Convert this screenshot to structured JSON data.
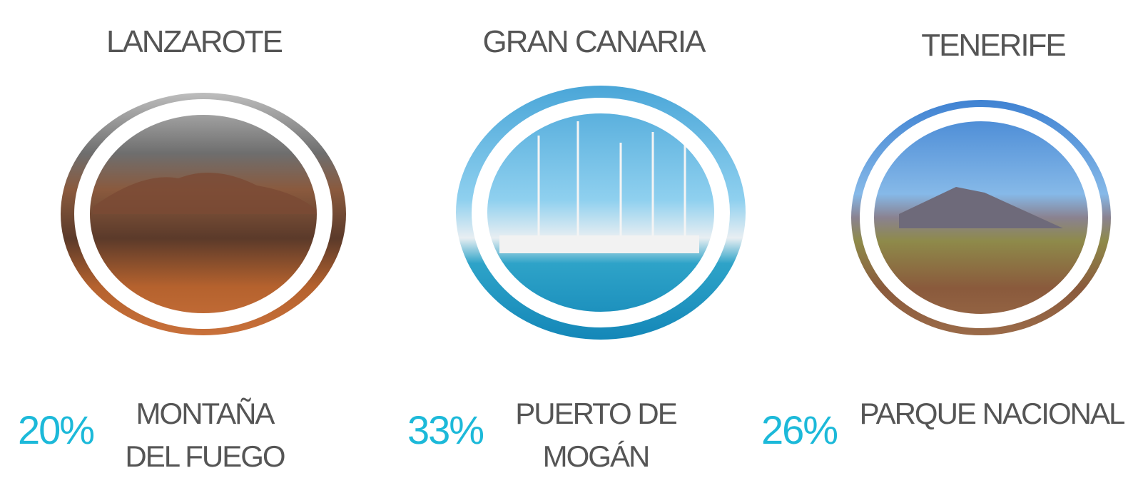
{
  "islands": [
    {
      "title": "LANZAROTE",
      "percent": "20%",
      "place": [
        "MONTAÑA",
        "DEL FUEGO"
      ]
    },
    {
      "title": "GRAN CANARIA",
      "percent": "33%",
      "place": [
        "PUERTO DE",
        "MOGÁN"
      ]
    },
    {
      "title": "TENERIFE",
      "percent": "26%",
      "place": [
        "PARQUE NACIONAL"
      ]
    }
  ]
}
